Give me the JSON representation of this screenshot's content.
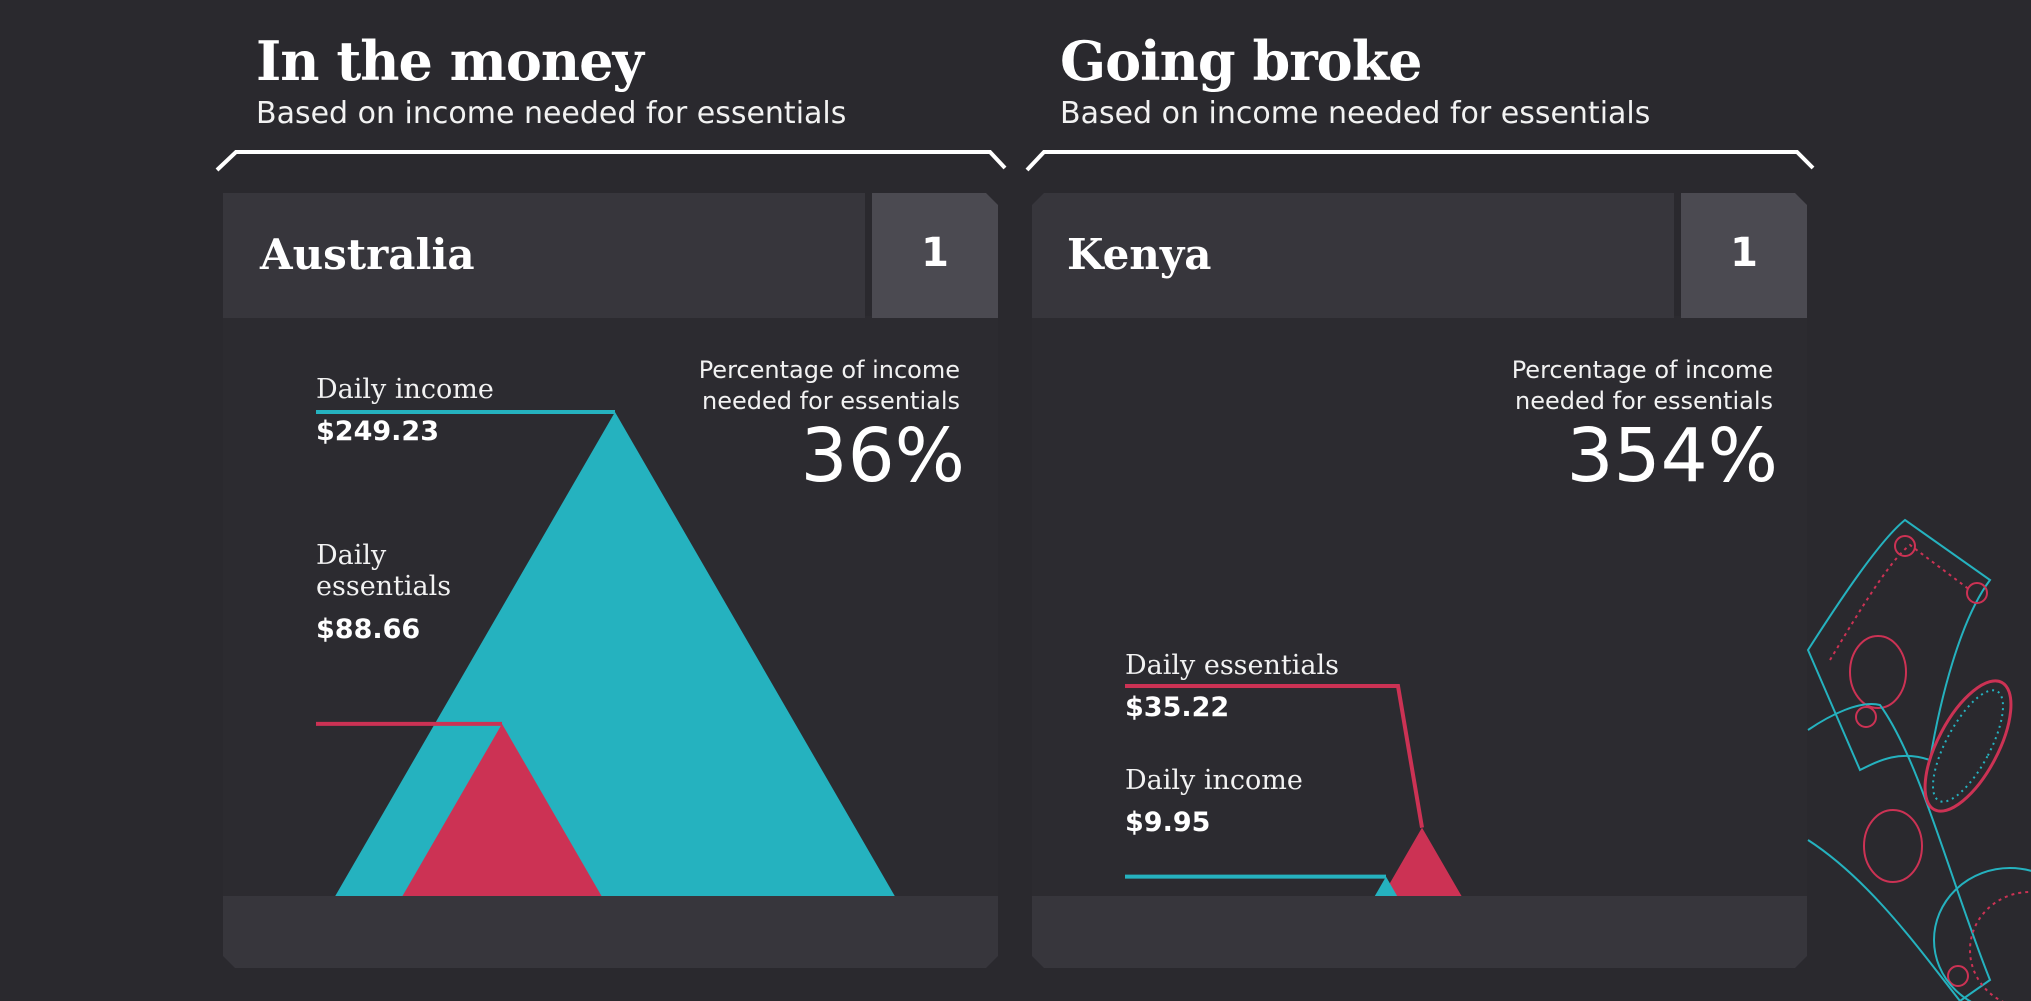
{
  "chart_data": [
    {
      "type": "area",
      "title": "In the money",
      "subtitle": "Based on income needed for essentials",
      "country": "Australia",
      "rank": "1",
      "percent_label": "Percentage of income needed for essentials",
      "percent_value": "36%",
      "series": [
        {
          "name": "Daily income",
          "value": 249.23,
          "value_label": "$249.23",
          "color": "#25b2bf"
        },
        {
          "name": "Daily essentials",
          "value": 88.66,
          "value_label": "$88.66",
          "color": "#cc3254"
        }
      ]
    },
    {
      "type": "area",
      "title": "Going broke",
      "subtitle": "Based on income needed for essentials",
      "country": "Kenya",
      "rank": "1",
      "percent_label": "Percentage of income needed for essentials",
      "percent_value": "354%",
      "series": [
        {
          "name": "Daily essentials",
          "value": 35.22,
          "value_label": "$35.22",
          "color": "#cc3254"
        },
        {
          "name": "Daily income",
          "value": 9.95,
          "value_label": "$9.95",
          "color": "#25b2bf"
        }
      ]
    }
  ],
  "colors": {
    "background": "#2a292e",
    "card": "#37363c",
    "rank_box": "#4b4a51",
    "income": "#25b2bf",
    "essentials": "#cc3254"
  }
}
